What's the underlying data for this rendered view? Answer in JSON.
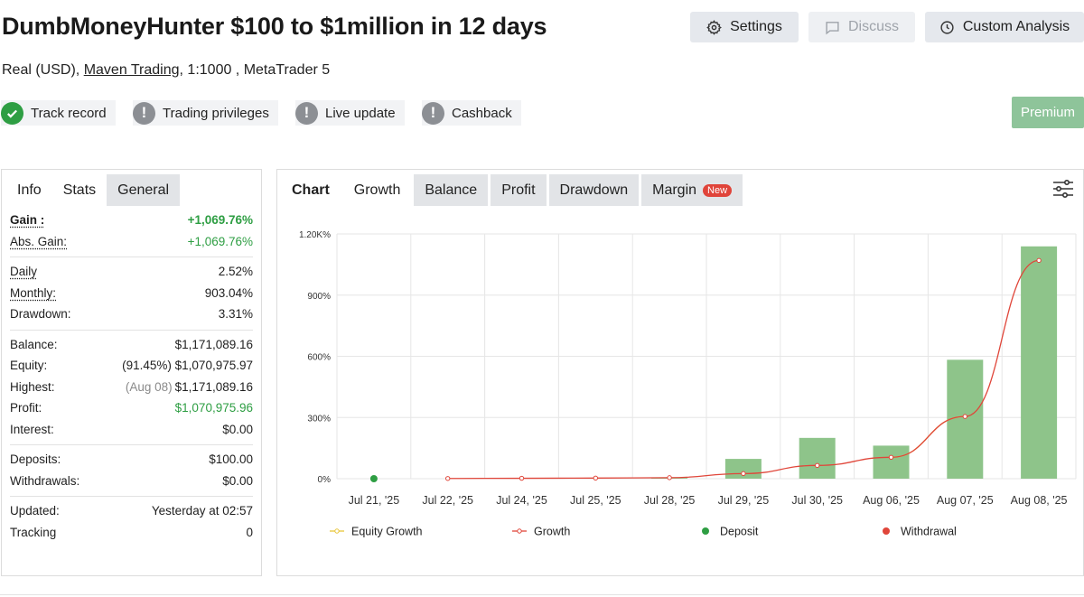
{
  "header": {
    "title": "DumbMoneyHunter $100 to $1million in 12 days",
    "account_type": "Real (USD),",
    "broker": "Maven Trading",
    "leverage_platform": ", 1:1000 , MetaTrader 5"
  },
  "actions": {
    "settings": "Settings",
    "discuss": "Discuss",
    "custom_analysis": "Custom Analysis"
  },
  "badges": {
    "track_record": "Track record",
    "trading_privileges": "Trading privileges",
    "live_update": "Live update",
    "cashback": "Cashback"
  },
  "premium": "Premium",
  "left_tabs": {
    "info": "Info",
    "stats": "Stats",
    "general": "General"
  },
  "stats": {
    "gain_label": "Gain :",
    "gain": "+1,069.76%",
    "abs_gain_label": "Abs. Gain:",
    "abs_gain": "+1,069.76%",
    "daily_label": "Daily",
    "daily": "2.52%",
    "monthly_label": "Monthly:",
    "monthly": "903.04%",
    "drawdown_label": "Drawdown:",
    "drawdown": "3.31%",
    "balance_label": "Balance:",
    "balance": "$1,171,089.16",
    "equity_label": "Equity:",
    "equity_pct": "(91.45%)",
    "equity": "$1,070,975.97",
    "highest_label": "Highest:",
    "highest_date": "(Aug 08)",
    "highest": "$1,171,089.16",
    "profit_label": "Profit:",
    "profit": "$1,070,975.96",
    "interest_label": "Interest:",
    "interest": "$0.00",
    "deposits_label": "Deposits:",
    "deposits": "$100.00",
    "withdrawals_label": "Withdrawals:",
    "withdrawals": "$0.00",
    "updated_label": "Updated:",
    "updated": "Yesterday at 02:57",
    "tracking_label": "Tracking",
    "tracking": "0"
  },
  "chart_tabs": {
    "chart": "Chart",
    "growth": "Growth",
    "balance": "Balance",
    "profit": "Profit",
    "drawdown": "Drawdown",
    "margin": "Margin",
    "new": "New"
  },
  "colors": {
    "bar": "#8ec48a",
    "growth": "#e0463a",
    "equity": "#e8c53a",
    "deposit": "#2e9e43",
    "withdrawal": "#e0463a",
    "accent_green": "#2e9e43"
  },
  "chart_data": {
    "type": "bar",
    "categories": [
      "Jul 21, '25",
      "Jul 22, '25",
      "Jul 24, '25",
      "Jul 25, '25",
      "Jul 28, '25",
      "Jul 29, '25",
      "Jul 30, '25",
      "Aug 06, '25",
      "Aug 07, '25",
      "Aug 08, '25"
    ],
    "yticks": [
      "0%",
      "300%",
      "600%",
      "900%",
      "1.20K%"
    ],
    "ylim": [
      0,
      1200
    ],
    "grid": true,
    "legend_position": "bottom",
    "series": [
      {
        "name": "Growth",
        "type": "bar",
        "values": [
          0,
          0,
          0,
          0,
          4,
          97,
          200,
          162,
          583,
          1139
        ]
      },
      {
        "name": "Growth",
        "type": "line",
        "values": [
          null,
          1,
          2,
          3,
          5,
          25,
          65,
          105,
          305,
          1070
        ]
      },
      {
        "name": "Equity Growth",
        "type": "line",
        "values": [
          null,
          null,
          null,
          null,
          null,
          null,
          null,
          105,
          305,
          null
        ]
      }
    ],
    "deposit_points": [
      {
        "category": "Jul 21, '25",
        "value": 0
      }
    ],
    "legend": [
      "Equity Growth",
      "Growth",
      "Deposit",
      "Withdrawal"
    ]
  }
}
